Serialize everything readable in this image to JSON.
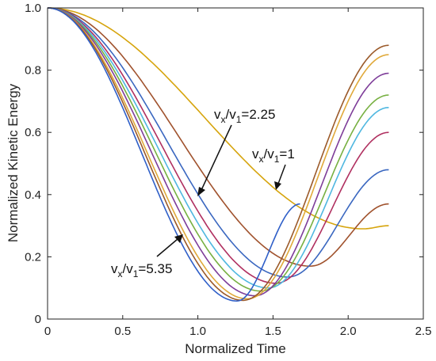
{
  "chart_data": {
    "type": "line",
    "title": "",
    "xlabel": "Normalized Time",
    "ylabel": "Normalized Kinetic Energy",
    "xlim": [
      0,
      2.5
    ],
    "ylim": [
      0,
      1.0
    ],
    "x_ticks": [
      "0",
      "0.5",
      "1.0",
      "1.5",
      "2.0",
      "2.5"
    ],
    "y_ticks": [
      "0",
      "0.2",
      "0.4",
      "0.6",
      "0.8",
      "1.0"
    ],
    "grid": false,
    "legend": "none",
    "annotations": [
      {
        "base": "v",
        "sub1": "x",
        "mid": "/v",
        "sub2": "1",
        "tail": "=2.25",
        "points_to": [
          1.0,
          0.39
        ]
      },
      {
        "base": "v",
        "sub1": "x",
        "mid": "/v",
        "sub2": "1",
        "tail": "=1",
        "points_to": [
          1.48,
          0.42
        ]
      },
      {
        "base": "v",
        "sub1": "x",
        "mid": "/v",
        "sub2": "1",
        "tail": "=5.35",
        "points_to": [
          0.95,
          0.27
        ]
      }
    ],
    "series": [
      {
        "color": "#D6A40C",
        "min_t": 2.1,
        "min_v": 0.29,
        "end_t": 2.27,
        "end_v": 0.3
      },
      {
        "color": "#A0522D",
        "min_t": 1.75,
        "min_v": 0.17,
        "end_t": 2.27,
        "end_v": 0.37
      },
      {
        "color": "#3A67C0",
        "min_t": 1.6,
        "min_v": 0.135,
        "end_t": 2.27,
        "end_v": 0.48
      },
      {
        "color": "#B03060",
        "min_t": 1.52,
        "min_v": 0.115,
        "end_t": 2.27,
        "end_v": 0.6
      },
      {
        "color": "#4FB7E0",
        "min_t": 1.47,
        "min_v": 0.1,
        "end_t": 2.27,
        "end_v": 0.68
      },
      {
        "color": "#77B041",
        "min_t": 1.42,
        "min_v": 0.09,
        "end_t": 2.27,
        "end_v": 0.72
      },
      {
        "color": "#7E3D99",
        "min_t": 1.38,
        "min_v": 0.075,
        "end_t": 2.27,
        "end_v": 0.79
      },
      {
        "color": "#E0A93A",
        "min_t": 1.33,
        "min_v": 0.065,
        "end_t": 2.27,
        "end_v": 0.85
      },
      {
        "color": "#9B5A2A",
        "min_t": 1.3,
        "min_v": 0.06,
        "end_t": 2.27,
        "end_v": 0.88
      },
      {
        "color": "#2F5FC8",
        "min_t": 1.26,
        "min_v": 0.058,
        "end_t": 1.68,
        "end_v": 0.37
      }
    ]
  }
}
